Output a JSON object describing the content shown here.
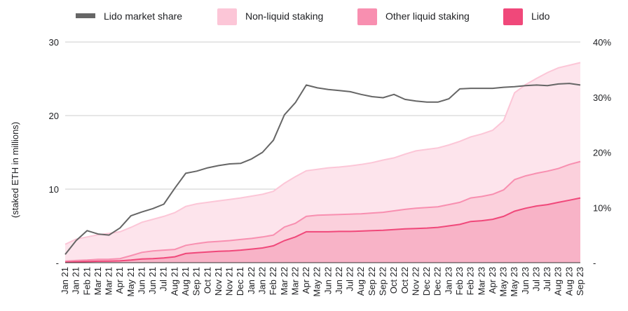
{
  "chart_data": {
    "type": "area",
    "stacked": true,
    "x_categories": [
      "Jan 21",
      "Jan 21",
      "Feb 21",
      "Mar 21",
      "Mar 21",
      "Apr 21",
      "May 21",
      "Jun 21",
      "Jun 21",
      "Jul 21",
      "Aug 21",
      "Aug 21",
      "Sep 21",
      "Oct 21",
      "Nov 21",
      "Nov 21",
      "Dec 21",
      "Jan 22",
      "Jan 22",
      "Feb 22",
      "Mar 22",
      "Mar 22",
      "Apr 22",
      "May 22",
      "Jun 22",
      "Jun 22",
      "Jul 22",
      "Aug 22",
      "Sep 22",
      "Sep 22",
      "Oct 22",
      "Oct 22",
      "Nov 22",
      "Dec 22",
      "Dec 22",
      "Jan 23",
      "Feb 23",
      "Feb 23",
      "Mar 23",
      "Apr 23",
      "May 23",
      "May 23",
      "Jun 23",
      "Jul 23",
      "Jul 23",
      "Aug 23",
      "Aug 23",
      "Sep 23"
    ],
    "y_left": {
      "label": "(staked ETH in millions)",
      "min": 0,
      "max": 30,
      "ticks": [
        "-",
        "10",
        "20",
        "30"
      ]
    },
    "y_right": {
      "min": 0,
      "max": 40,
      "ticks": [
        "-",
        "10%",
        "20%",
        "30%",
        "40%"
      ]
    },
    "legend": {
      "placement": "top",
      "items": [
        {
          "name": "Lido market share",
          "color": "#666666",
          "kind": "line"
        },
        {
          "name": "Non-liquid staking",
          "color": "#fcc6d7",
          "kind": "area"
        },
        {
          "name": "Other liquid staking",
          "color": "#f88fb0",
          "kind": "area"
        },
        {
          "name": "Lido",
          "color": "#f0487a",
          "kind": "area"
        }
      ]
    },
    "series": [
      {
        "name": "Lido",
        "axis": "left",
        "values": [
          0.05,
          0.1,
          0.15,
          0.2,
          0.22,
          0.25,
          0.35,
          0.5,
          0.55,
          0.65,
          0.8,
          1.25,
          1.35,
          1.45,
          1.55,
          1.6,
          1.7,
          1.85,
          2.0,
          2.3,
          3.0,
          3.5,
          4.2,
          4.2,
          4.2,
          4.25,
          4.25,
          4.3,
          4.35,
          4.4,
          4.5,
          4.6,
          4.65,
          4.7,
          4.8,
          5.0,
          5.2,
          5.6,
          5.7,
          5.9,
          6.3,
          7.0,
          7.4,
          7.7,
          7.9,
          8.2,
          8.5,
          8.8
        ]
      },
      {
        "name": "Other liquid staking",
        "axis": "left",
        "values": [
          0.15,
          0.2,
          0.2,
          0.25,
          0.25,
          0.3,
          0.6,
          0.9,
          1.05,
          1.05,
          1.0,
          1.1,
          1.25,
          1.35,
          1.35,
          1.4,
          1.45,
          1.45,
          1.5,
          1.45,
          1.85,
          1.85,
          2.1,
          2.25,
          2.3,
          2.3,
          2.35,
          2.35,
          2.4,
          2.45,
          2.55,
          2.65,
          2.75,
          2.8,
          2.8,
          2.9,
          3.0,
          3.2,
          3.3,
          3.4,
          3.6,
          4.3,
          4.4,
          4.45,
          4.55,
          4.6,
          4.85,
          4.95
        ]
      },
      {
        "name": "Non-liquid staking",
        "axis": "left",
        "values": [
          2.3,
          2.9,
          3.15,
          3.35,
          3.5,
          3.65,
          3.85,
          4.1,
          4.3,
          4.6,
          5.0,
          5.3,
          5.4,
          5.4,
          5.5,
          5.6,
          5.65,
          5.75,
          5.8,
          5.95,
          5.95,
          6.35,
          6.2,
          6.25,
          6.4,
          6.45,
          6.55,
          6.7,
          6.85,
          7.1,
          7.2,
          7.5,
          7.8,
          7.9,
          8.0,
          8.1,
          8.3,
          8.3,
          8.5,
          8.7,
          9.4,
          11.8,
          12.4,
          12.9,
          13.4,
          13.7,
          13.5,
          13.45
        ]
      },
      {
        "name": "Lido market share",
        "axis": "right",
        "type": "line",
        "values": [
          1.5,
          4,
          5.8,
          5.2,
          5.0,
          6.3,
          8.5,
          9.2,
          9.8,
          10.6,
          13.5,
          16.2,
          16.6,
          17.2,
          17.6,
          17.9,
          18.0,
          18.8,
          20.0,
          22.2,
          26.8,
          29.0,
          32.2,
          31.7,
          31.4,
          31.2,
          31.0,
          30.5,
          30.1,
          29.9,
          30.5,
          29.6,
          29.3,
          29.1,
          29.1,
          29.7,
          31.5,
          31.6,
          31.6,
          31.6,
          31.8,
          31.9,
          32.1,
          32.2,
          32.1,
          32.4,
          32.5,
          32.2
        ]
      }
    ],
    "colors": {
      "lido": "#f0487a",
      "lido_fill": "#f8b3c7",
      "other": "#f88fb0",
      "other_fill": "#fbd0dc",
      "non_liquid": "#fcc6d7",
      "non_liquid_fill": "#fde4ec",
      "share": "#666666",
      "grid": "#cccccc"
    }
  }
}
